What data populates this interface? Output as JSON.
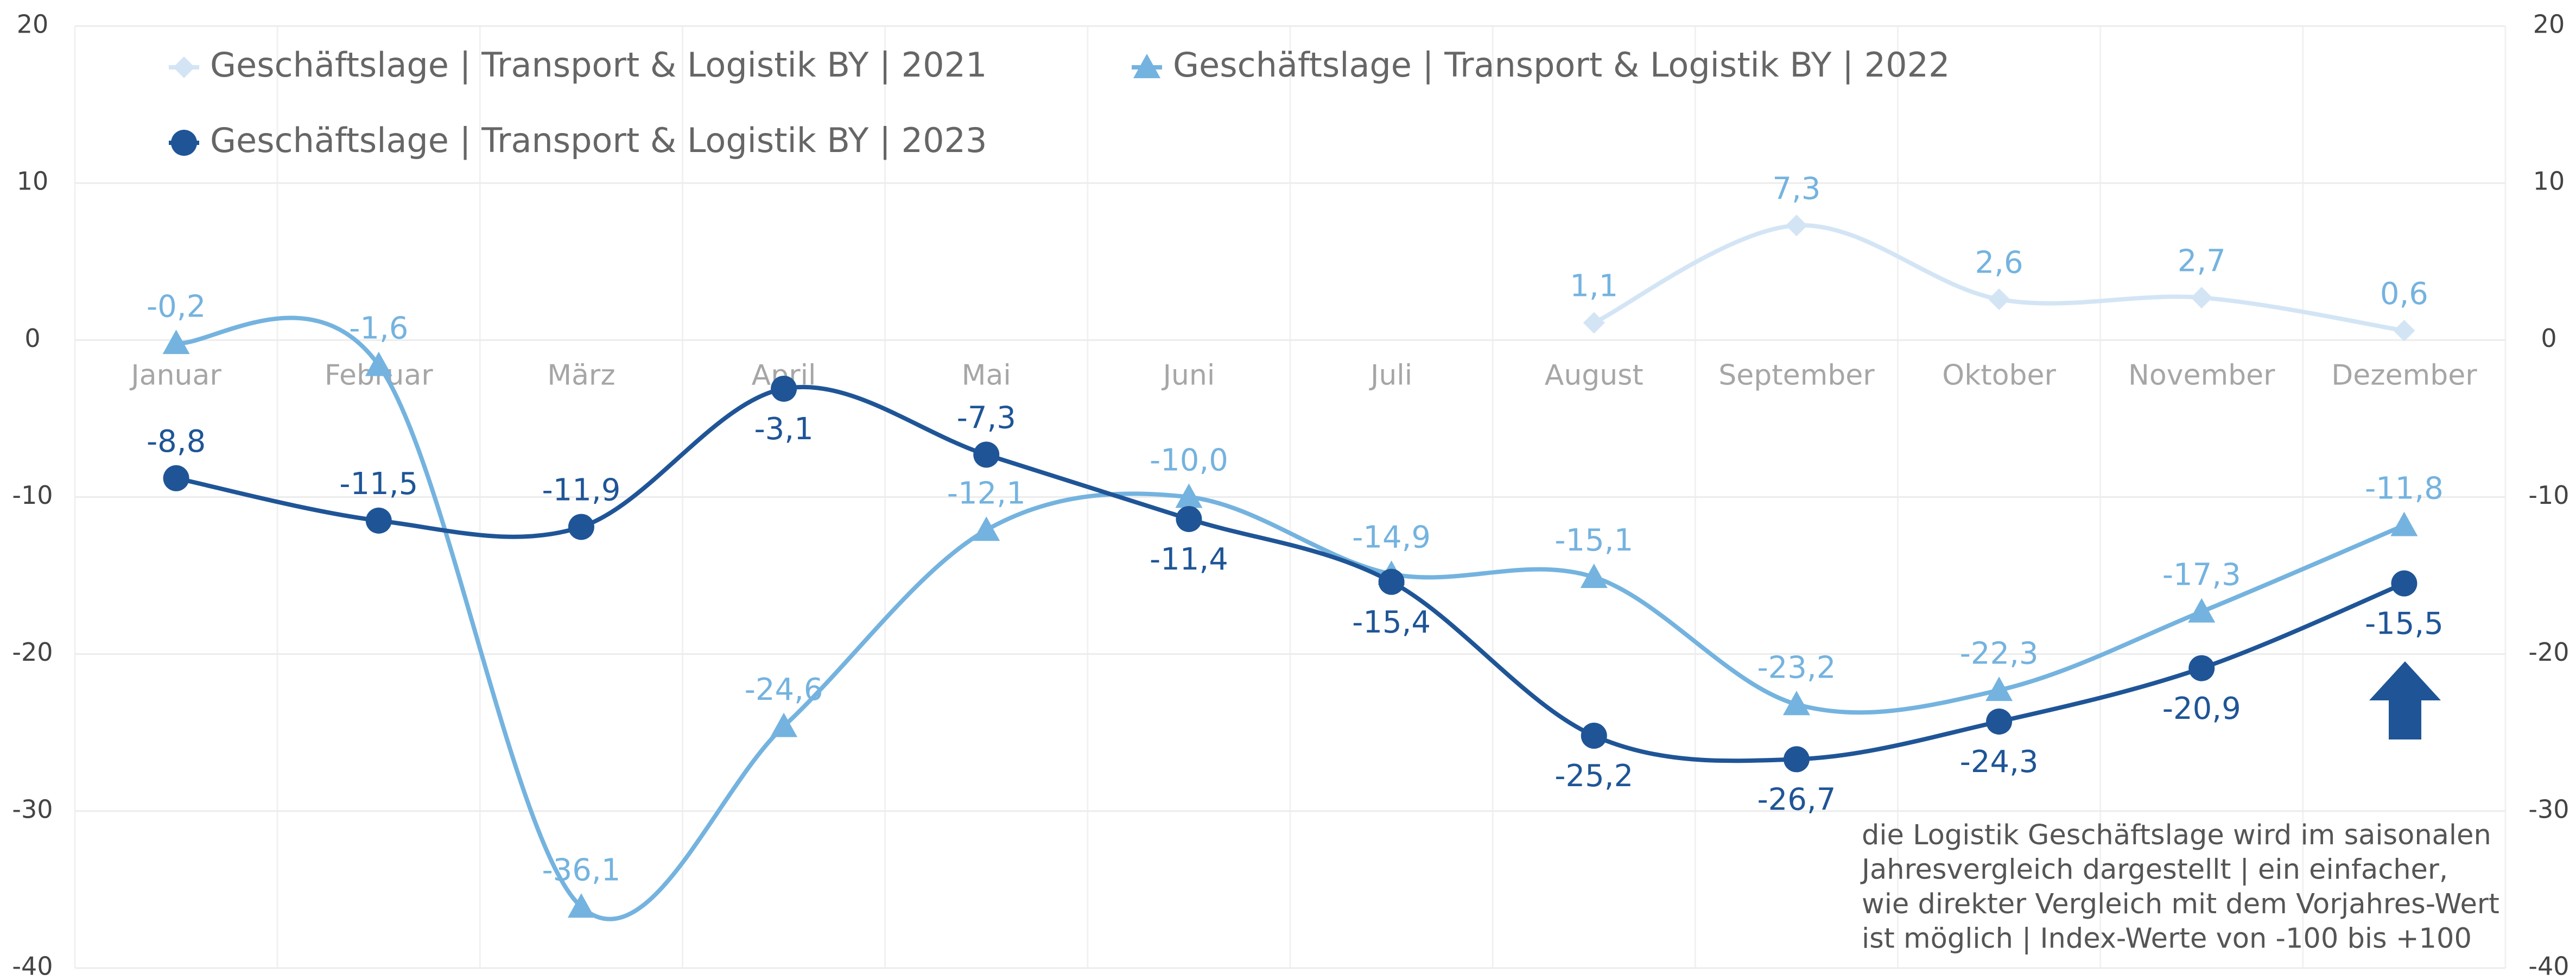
{
  "chart_data": {
    "type": "line",
    "categories": [
      "Januar",
      "Februar",
      "März",
      "April",
      "Mai",
      "Juni",
      "Juli",
      "August",
      "September",
      "Oktober",
      "November",
      "Dezember"
    ],
    "series": [
      {
        "name": "Geschäftslage | Transport & Logistik BY | 2021",
        "color": "#d3e5f5",
        "marker": "diamond",
        "values": [
          null,
          null,
          null,
          null,
          null,
          null,
          null,
          1.1,
          7.3,
          2.6,
          2.7,
          0.6
        ],
        "value_labels": [
          null,
          null,
          null,
          null,
          null,
          null,
          null,
          "1,1",
          "7,3",
          "2,6",
          "2,7",
          "0,6"
        ]
      },
      {
        "name": "Geschäftslage | Transport & Logistik BY | 2022",
        "color": "#74b3df",
        "marker": "triangle",
        "values": [
          -0.2,
          -1.6,
          -36.1,
          -24.6,
          -12.1,
          -10.0,
          -14.9,
          -15.1,
          -23.2,
          -22.3,
          -17.3,
          -11.8
        ],
        "value_labels": [
          "-0,2",
          "-1,6",
          "-36,1",
          "-24,6",
          "-12,1",
          "-10,0",
          "-14,9",
          "-15,1",
          "-23,2",
          "-22,3",
          "-17,3",
          "-11,8"
        ]
      },
      {
        "name": "Geschäftslage | Transport & Logistik BY | 2023",
        "color": "#1f5597",
        "marker": "circle",
        "axis": "y2",
        "values": [
          -8.8,
          -11.5,
          -11.9,
          -3.1,
          -7.3,
          -11.4,
          -15.4,
          -25.2,
          -26.7,
          -24.3,
          -20.9,
          -15.5
        ],
        "value_labels": [
          "-8,8",
          "-11,5",
          "-11,9",
          "-3,1",
          "-7,3",
          "-11,4",
          "-15,4",
          "-25,2",
          "-26,7",
          "-24,3",
          "-20,9",
          "-15,5"
        ]
      }
    ],
    "ylim": [
      -40,
      20
    ],
    "yticks": [
      -40,
      -30,
      -20,
      -10,
      0,
      10,
      20
    ],
    "y2lim": [
      -40,
      20
    ],
    "y2ticks": [
      -40,
      -30,
      -20,
      -10,
      0,
      10,
      20
    ],
    "grid": true,
    "legend": "top-left",
    "annotation": [
      "die Logistik Geschäftslage wird im saisonalen",
      "Jahresvergleich dargestellt | ein einfacher,",
      "wie direkter Vergleich mit dem Vorjahres-Wert",
      "ist möglich | Index-Werte von -100 bis +100"
    ]
  }
}
